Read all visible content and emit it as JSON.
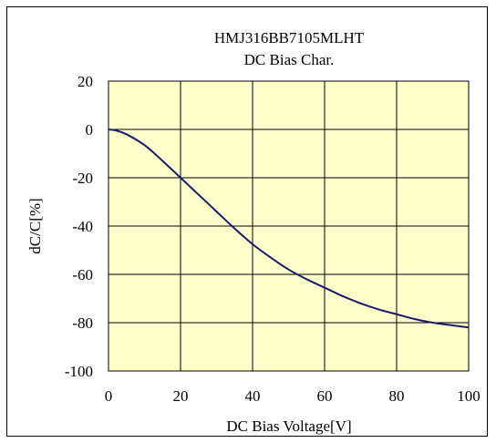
{
  "chart_data": {
    "type": "line",
    "title": "HMJ316BB7105MLHT",
    "subtitle": "DC Bias Char.",
    "xlabel": "DC Bias Voltage[V]",
    "ylabel": "dC/C[%]",
    "xlim": [
      0,
      100
    ],
    "ylim": [
      -100,
      20
    ],
    "x_ticks": [
      "0",
      "20",
      "40",
      "60",
      "80",
      "100"
    ],
    "y_ticks": [
      "20",
      "0",
      "-20",
      "-40",
      "-60",
      "-80",
      "-100"
    ],
    "grid": true,
    "plot_background": "#ffffcc",
    "line_color": "#1a1a6e",
    "series": [
      {
        "x": [
          0,
          2,
          5,
          10,
          15,
          20,
          25,
          30,
          35,
          40,
          45,
          50,
          55,
          60,
          65,
          70,
          75,
          80,
          85,
          90,
          95,
          100
        ],
        "values": [
          0,
          -0.4,
          -2,
          -6.5,
          -13,
          -20,
          -27,
          -34,
          -41,
          -47.5,
          -53,
          -58,
          -62,
          -65.5,
          -69,
          -72,
          -74.5,
          -76.5,
          -78.5,
          -80,
          -81,
          -82
        ]
      }
    ]
  }
}
